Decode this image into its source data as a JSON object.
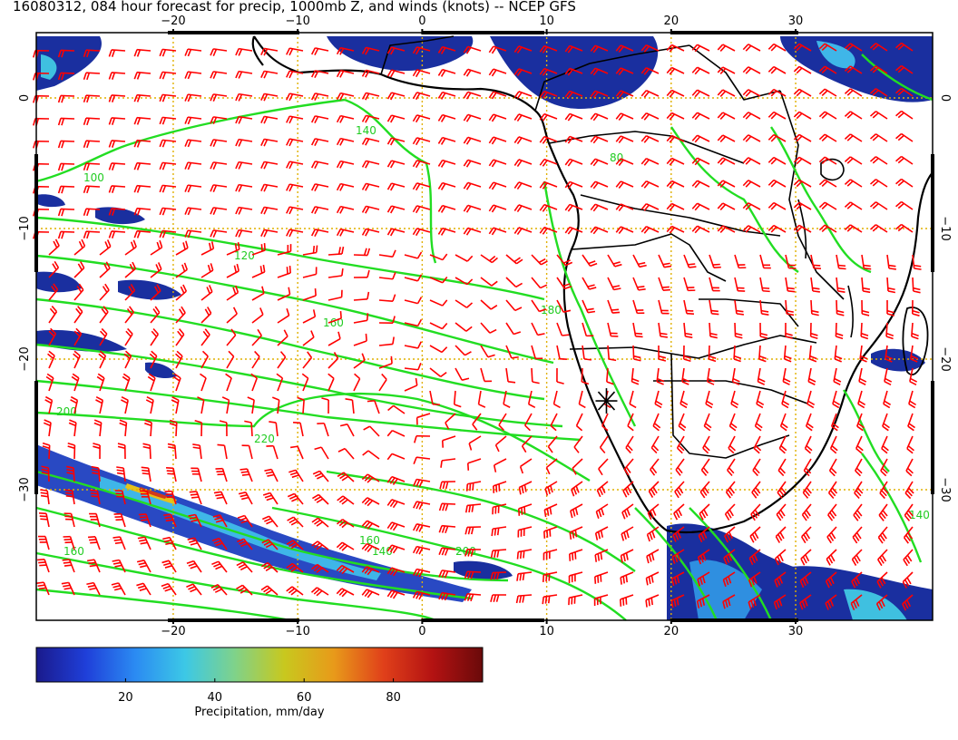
{
  "title": "16080312, 084 hour forecast for precip, 1000mb Z, and winds (knots) -- NCEP GFS",
  "map": {
    "lon_range": [
      -31,
      41
    ],
    "lat_range": [
      -40,
      5
    ],
    "lon_ticks": [
      "−20",
      "−10",
      "0",
      "10",
      "20",
      "30"
    ],
    "lon_tick_values": [
      -20,
      -10,
      0,
      10,
      20,
      30
    ],
    "lat_ticks": [
      "0",
      "−10",
      "−20",
      "−30"
    ],
    "lat_tick_values": [
      0,
      -10,
      -20,
      -30
    ],
    "grid": true,
    "grid_color": "#e0b000",
    "coast_color": "#000000",
    "contour_color": "#22dd22",
    "barb_color": "#ff0000",
    "marker_location": {
      "lon": 14.8,
      "lat": -23.2
    },
    "contour_labels": [
      "140",
      "100",
      "80",
      "120",
      "160",
      "180",
      "200",
      "220",
      "160",
      "140",
      "200",
      "140",
      "160"
    ]
  },
  "colorbar": {
    "ticks": [
      "20",
      "40",
      "60",
      "80"
    ],
    "tick_values": [
      20,
      40,
      60,
      80
    ],
    "range": [
      0,
      100
    ],
    "label": "Precipitation, mm/day",
    "colors": [
      "#1a1a8c",
      "#1f3fd9",
      "#2b8bf2",
      "#3cc8e6",
      "#7fd28a",
      "#c8c81e",
      "#e89a1a",
      "#e0401a",
      "#b31212",
      "#6a0a0a"
    ]
  }
}
